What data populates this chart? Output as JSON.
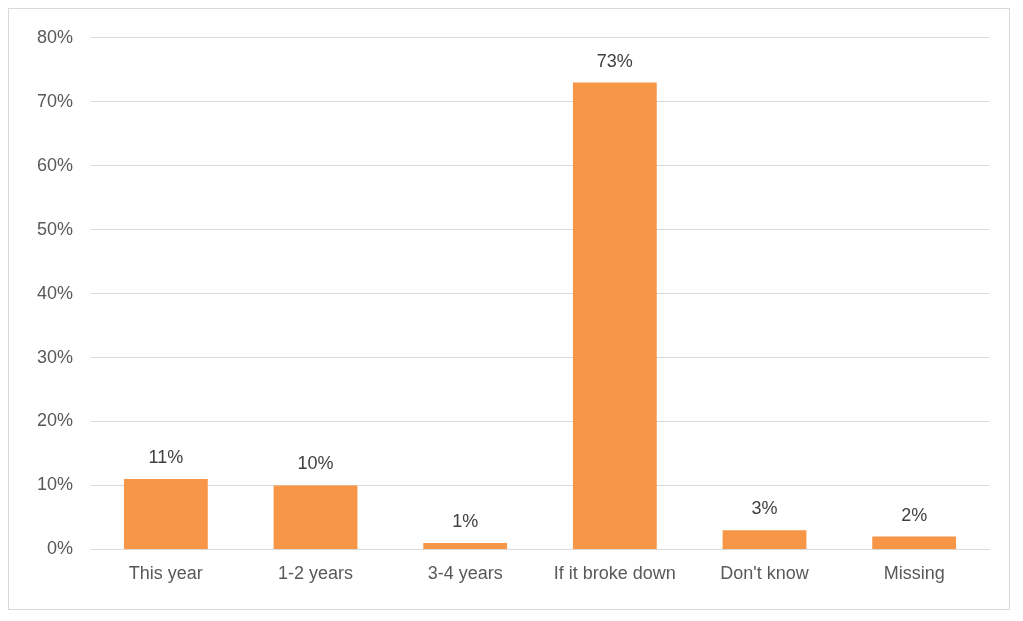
{
  "chart_data": {
    "type": "bar",
    "categories": [
      "This year",
      "1-2 years",
      "3-4 years",
      "If it broke down",
      "Don't know",
      "Missing"
    ],
    "values": [
      11,
      10,
      1,
      73,
      3,
      2
    ],
    "value_labels": [
      "11%",
      "10%",
      "1%",
      "73%",
      "3%",
      "2%"
    ],
    "color": "#f79646",
    "ylim": [
      0,
      80
    ],
    "yticks": [
      {
        "value": 0,
        "label": "0%"
      },
      {
        "value": 10,
        "label": "10%"
      },
      {
        "value": 20,
        "label": "20%"
      },
      {
        "value": 30,
        "label": "30%"
      },
      {
        "value": 40,
        "label": "40%"
      },
      {
        "value": 50,
        "label": "50%"
      },
      {
        "value": 60,
        "label": "60%"
      },
      {
        "value": 70,
        "label": "70%"
      },
      {
        "value": 80,
        "label": "80%"
      }
    ],
    "grid": "y",
    "legend": false
  }
}
